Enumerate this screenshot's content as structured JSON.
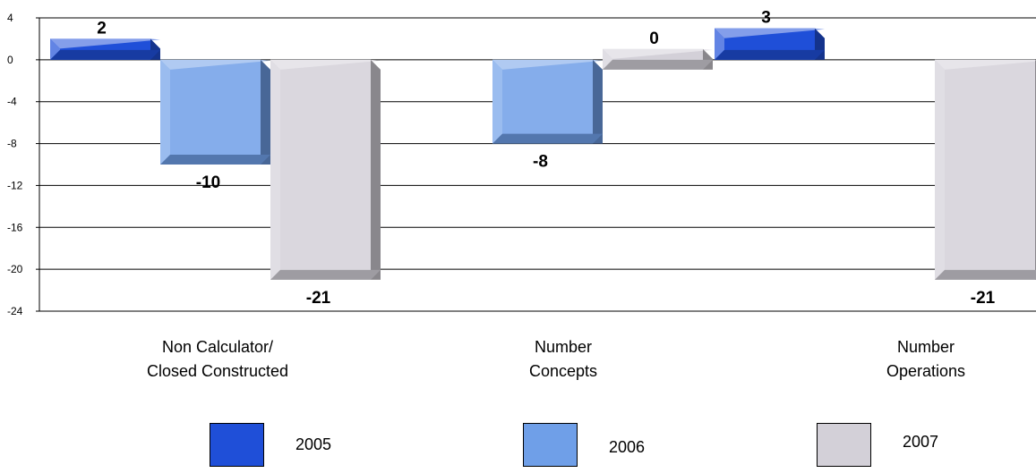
{
  "chart_data": {
    "type": "bar",
    "categories": [
      "Non Calculator/\nClosed Constructed",
      "Number\nConcepts",
      "Number\nOperations"
    ],
    "series": [
      {
        "name": "2005",
        "values": [
          2,
          null,
          3
        ],
        "color": "#1f4fd8",
        "labels": [
          "2",
          "",
          "3"
        ]
      },
      {
        "name": "2006",
        "values": [
          -10,
          -8,
          null
        ],
        "color": "#6f9fe8",
        "labels": [
          "-10",
          "-8",
          ""
        ]
      },
      {
        "name": "2007",
        "values": [
          -21,
          0,
          -21
        ],
        "color": "#d3d0d8",
        "labels": [
          "-21",
          "0",
          "-21"
        ]
      }
    ],
    "y_ticks": [
      "4",
      "0",
      "-4",
      "-8",
      "-12",
      "-16",
      "-20",
      "-24"
    ],
    "ylim": [
      -24,
      4
    ],
    "grid": true,
    "legend_position": "bottom"
  }
}
